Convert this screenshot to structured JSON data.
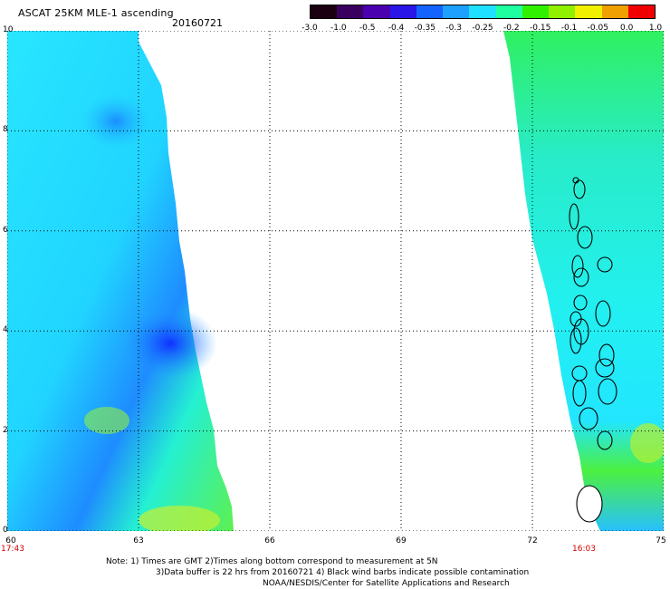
{
  "header": {
    "title": "ASCAT 25KM MLE-1 ascending",
    "date": "20160721"
  },
  "colorbar": {
    "labels": [
      "-3.0",
      "-1.0",
      "-0.5",
      "-0.4",
      "-0.35",
      "-0.3",
      "-0.25",
      "-0.2",
      "-0.15",
      "-0.1",
      "-0.05",
      "0.0",
      "1.0"
    ],
    "colors": [
      "#1a0010",
      "#3a0060",
      "#4b00b0",
      "#2a16e6",
      "#1463ff",
      "#1ea0ff",
      "#1fe0ff",
      "#1fffa0",
      "#30f000",
      "#90f000",
      "#f0f000",
      "#f0a000",
      "#f00000"
    ]
  },
  "axes": {
    "x_ticks": [
      "60",
      "63",
      "66",
      "69",
      "72",
      "75"
    ],
    "y_ticks": [
      "10",
      "8",
      "6",
      "4",
      "2",
      "0"
    ],
    "time_left": "17:43",
    "time_right": "16:03"
  },
  "map_data": {
    "x_range": [
      60,
      75
    ],
    "y_range": [
      0,
      10
    ],
    "swath_colors": {
      "left_swath": [
        "#23f0ee",
        "#24c9ff",
        "#1478ff"
      ],
      "right_swath": [
        "#23f0ee",
        "#24d6ff",
        "#2ff57a"
      ]
    }
  },
  "footer": {
    "line1": "Note: 1) Times are GMT 2)Times along bottom correspond to measurement at 5N",
    "line2": "3)Data buffer is 22 hrs from 20160721 4) Black wind barbs indicate possible contamination",
    "line3": "NOAA/NESDIS/Center for Satellite Applications and Research"
  }
}
